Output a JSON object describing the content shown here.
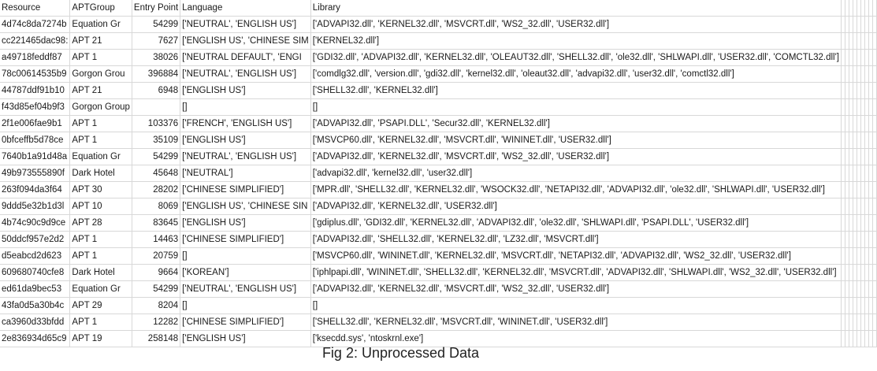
{
  "sheet": {
    "headers": [
      "Resource",
      "APTGroup",
      "Entry Point",
      "Language",
      "Library"
    ],
    "rows": [
      [
        "4d74c8da7274b",
        "Equation Gr",
        "54299",
        "['NEUTRAL', 'ENGLISH US']",
        "['ADVAPI32.dll', 'KERNEL32.dll', 'MSVCRT.dll', 'WS2_32.dll', 'USER32.dll']"
      ],
      [
        "cc221465dac98:",
        "APT 21",
        "7627",
        "['ENGLISH US', 'CHINESE SIM",
        "['KERNEL32.dll']"
      ],
      [
        "a49718feddf87",
        "APT 1",
        "38026",
        "['NEUTRAL DEFAULT', 'ENGI",
        "['GDI32.dll', 'ADVAPI32.dll', 'KERNEL32.dll', 'OLEAUT32.dll', 'SHELL32.dll', 'ole32.dll', 'SHLWAPI.dll', 'USER32.dll', 'COMCTL32.dll']"
      ],
      [
        "78c00614535b9",
        "Gorgon Grou",
        "396884",
        "['NEUTRAL', 'ENGLISH US']",
        "['comdlg32.dll', 'version.dll', 'gdi32.dll', 'kernel32.dll', 'oleaut32.dll', 'advapi32.dll', 'user32.dll', 'comctl32.dll']"
      ],
      [
        "44787ddf91b10",
        "APT 21",
        "6948",
        "['ENGLISH US']",
        "['SHELL32.dll', 'KERNEL32.dll']"
      ],
      [
        "f43d85ef04b9f3",
        "Gorgon Group",
        "",
        "[]",
        "[]"
      ],
      [
        "2f1e006fae9b1",
        "APT 1",
        "103376",
        "['FRENCH', 'ENGLISH US']",
        "['ADVAPI32.dll', 'PSAPI.DLL', 'Secur32.dll', 'KERNEL32.dll']"
      ],
      [
        "0bfceffb5d78ce",
        "APT 1",
        "35109",
        "['ENGLISH US']",
        "['MSVCP60.dll', 'KERNEL32.dll', 'MSVCRT.dll', 'WININET.dll', 'USER32.dll']"
      ],
      [
        "7640b1a91d48a",
        "Equation Gr",
        "54299",
        "['NEUTRAL', 'ENGLISH US']",
        "['ADVAPI32.dll', 'KERNEL32.dll', 'MSVCRT.dll', 'WS2_32.dll', 'USER32.dll']"
      ],
      [
        "49b973555890f",
        "Dark Hotel",
        "45648",
        "['NEUTRAL']",
        "['advapi32.dll', 'kernel32.dll', 'user32.dll']"
      ],
      [
        "263f094da3f64",
        "APT 30",
        "28202",
        "['CHINESE SIMPLIFIED']",
        "['MPR.dll', 'SHELL32.dll', 'KERNEL32.dll', 'WSOCK32.dll', 'NETAPI32.dll', 'ADVAPI32.dll', 'ole32.dll', 'SHLWAPI.dll', 'USER32.dll']"
      ],
      [
        "9ddd5e32b1d3l",
        "APT 10",
        "8069",
        "['ENGLISH US', 'CHINESE SIN",
        "['ADVAPI32.dll', 'KERNEL32.dll', 'USER32.dll']"
      ],
      [
        "4b74c90c9d9ce",
        "APT 28",
        "83645",
        "['ENGLISH US']",
        "['gdiplus.dll', 'GDI32.dll', 'KERNEL32.dll', 'ADVAPI32.dll', 'ole32.dll', 'SHLWAPI.dll', 'PSAPI.DLL', 'USER32.dll']"
      ],
      [
        "50ddcf957e2d2",
        "APT 1",
        "14463",
        "['CHINESE SIMPLIFIED']",
        "['ADVAPI32.dll', 'SHELL32.dll', 'KERNEL32.dll', 'LZ32.dll', 'MSVCRT.dll']"
      ],
      [
        "d5eabcd2d623",
        "APT 1",
        "20759",
        "[]",
        "['MSVCP60.dll', 'WININET.dll', 'KERNEL32.dll', 'MSVCRT.dll', 'NETAPI32.dll', 'ADVAPI32.dll', 'WS2_32.dll', 'USER32.dll']"
      ],
      [
        "609680740cfe8",
        "Dark Hotel",
        "9664",
        "['KOREAN']",
        "['iphlpapi.dll', 'WININET.dll', 'SHELL32.dll', 'KERNEL32.dll', 'MSVCRT.dll', 'ADVAPI32.dll', 'SHLWAPI.dll', 'WS2_32.dll', 'USER32.dll']"
      ],
      [
        "ed61da9bec53",
        "Equation Gr",
        "54299",
        "['NEUTRAL', 'ENGLISH US']",
        "['ADVAPI32.dll', 'KERNEL32.dll', 'MSVCRT.dll', 'WS2_32.dll', 'USER32.dll']"
      ],
      [
        "43fa0d5a30b4c",
        "APT 29",
        "8204",
        "[]",
        "[]"
      ],
      [
        "ca3960d33bfdd",
        "APT 1",
        "12282",
        "['CHINESE SIMPLIFIED']",
        "['SHELL32.dll', 'KERNEL32.dll', 'MSVCRT.dll', 'WININET.dll', 'USER32.dll']"
      ],
      [
        "2e836934d65c9",
        "APT 19",
        "258148",
        "['ENGLISH US']",
        "['ksecdd.sys', 'ntoskrnl.exe']"
      ]
    ]
  },
  "caption": "Fig 2: Unprocessed Data"
}
